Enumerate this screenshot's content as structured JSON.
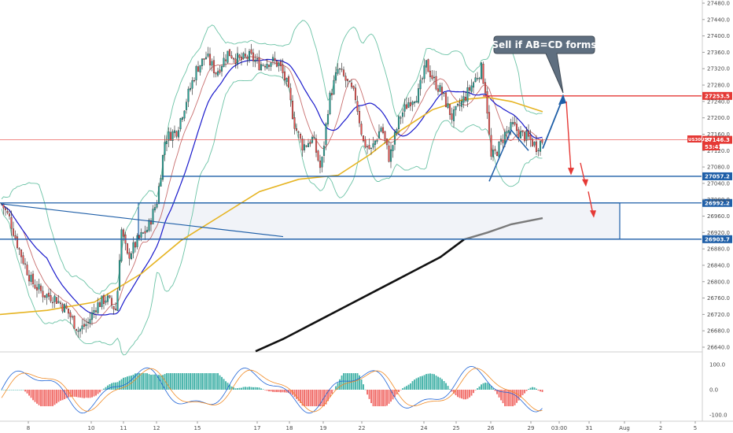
{
  "chart_data": {
    "type": "candlestick",
    "symbol": "US30USD",
    "y_axis": {
      "range": [
        26630,
        27490
      ],
      "ticks": [
        "27480.0",
        "27440.0",
        "27400.0",
        "27360.0",
        "27320.0",
        "27280.0",
        "27240.0",
        "27200.0",
        "27160.0",
        "27120.0",
        "27080.0",
        "27040.0",
        "27000.0",
        "26960.0",
        "26920.0",
        "26880.0",
        "26840.0",
        "26800.0",
        "26760.0",
        "26720.0",
        "26680.0",
        "26640.0"
      ]
    },
    "x_axis": {
      "ticks": [
        "8",
        "10",
        "11",
        "12",
        "15",
        "17",
        "18",
        "19",
        "22",
        "24",
        "25",
        "26",
        "29",
        "03:00",
        "31",
        "Aug",
        "2",
        "5"
      ]
    },
    "price_levels": [
      {
        "value": 27253.5,
        "label": "27253.5",
        "color": "#e53935"
      },
      {
        "value": 27146.3,
        "label": "27146.3",
        "color": "#e53935"
      },
      {
        "value": 27057.2,
        "label": "27057.2",
        "color": "#1f5fa8"
      },
      {
        "value": 26992.2,
        "label": "26992.2",
        "color": "#1f5fa8"
      },
      {
        "value": 26903.7,
        "label": "26903.7",
        "color": "#1f5fa8"
      }
    ],
    "current_price": {
      "symbol_tag": "US30USD",
      "price": "27146.3",
      "countdown": "53:41"
    },
    "annotation": "Sell if AB=CD forms",
    "oscillator": {
      "ticks": [
        "100.0",
        "0.0",
        "-100.0"
      ]
    },
    "colors": {
      "up": "#26a69a",
      "down": "#ef5350",
      "bollinger": "#6cc3a6",
      "ma_blue": "#1a1acc",
      "ma_red": "#b03030",
      "ma_yellow": "#e6b422",
      "ma_black": "#111111",
      "ma_gray": "#7a7a7a",
      "level_blue": "#1f5fa8",
      "level_red": "#e53935"
    }
  }
}
